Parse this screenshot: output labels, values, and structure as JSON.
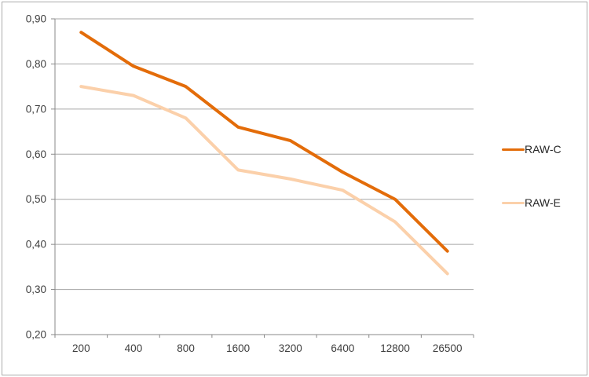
{
  "chart_data": {
    "type": "line",
    "categories": [
      "200",
      "400",
      "800",
      "1600",
      "3200",
      "6400",
      "12800",
      "26500"
    ],
    "series": [
      {
        "name": "RAW-C",
        "color": "#e36c09",
        "values": [
          0.87,
          0.795,
          0.75,
          0.66,
          0.63,
          0.56,
          0.5,
          0.385
        ]
      },
      {
        "name": "RAW-E",
        "color": "#fbd0aa",
        "values": [
          0.75,
          0.73,
          0.68,
          0.565,
          0.545,
          0.52,
          0.45,
          0.335
        ]
      }
    ],
    "title": "",
    "xlabel": "",
    "ylabel": "",
    "ylim": [
      0.2,
      0.9
    ],
    "y_tick_step": 0.1,
    "y_tick_labels": [
      "0,20",
      "0,30",
      "0,40",
      "0,50",
      "0,60",
      "0,70",
      "0,80",
      "0,90"
    ],
    "decimal_separator": ",",
    "grid": "horizontal",
    "legend_position": "right"
  },
  "colors": {
    "gridline": "#a6a6a6",
    "axis": "#898989",
    "tick_text": "#3f3f3f",
    "background": "#ffffff",
    "frame_border": "#ababab"
  }
}
